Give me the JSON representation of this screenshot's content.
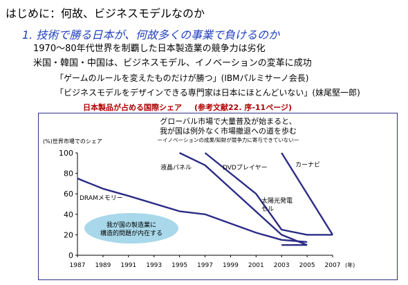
{
  "slide": {
    "heading": "はじめに：何故、ビジネスモデルなのか",
    "subheading": "1. 技術で勝る日本が、何故多くの事業で負けるのか",
    "bullet_1": "1970～80年代世界を制覇した日本製造業の競争力は劣化",
    "bullet_2": "米国・韓国・中国は、ビジネスモデル、イノベーションの変革に成功",
    "quote_1": "「ゲームのルールを変えたものだけが勝つ」(IBMパルミサーノ会長)",
    "quote_2": "「ビジネスモデルをデザインできる専門家は日本にほとんどいない」(妹尾堅一郎)",
    "chart_heading": "日本製品が占める国際シェア",
    "chart_reference": "(参考文献22. 序-11ページ)"
  },
  "colors": {
    "subheading": "#1f3fbf",
    "chart_heading": "#b00000",
    "line": "#2b2b86",
    "bubble": "#a8d8ea"
  },
  "chart_data": {
    "type": "line",
    "title_lines": [
      "グローバル市場で大量普及が始まると、",
      "我が国は例外なく市場撤退への道を歩む"
    ],
    "subtitle": "ーイノベーションの成果/知財が競争力に寄与できていないー",
    "ylabel": "(%)世界市場でのシェア",
    "xlabel_unit": "(年)",
    "ylim": [
      0,
      100
    ],
    "y_ticks": [
      "0",
      "20",
      "40",
      "60",
      "80",
      "100"
    ],
    "x_ticks": [
      "1987",
      "1989",
      "1991",
      "1993",
      "1995",
      "1997",
      "1999",
      "2001",
      "2003",
      "2005",
      "2007"
    ],
    "series": [
      {
        "name": "DRAMメモリー",
        "x": [
          1987,
          1989,
          1991,
          1995,
          1997,
          2001,
          2003,
          2005
        ],
        "y": [
          75,
          65,
          58,
          43,
          40,
          22,
          15,
          13
        ]
      },
      {
        "name": "液晶パネル",
        "x": [
          1995,
          1997,
          2003,
          2005
        ],
        "y": [
          100,
          88,
          20,
          10
        ]
      },
      {
        "name": "DVDプレイヤー",
        "x": [
          1997,
          2001,
          2003,
          2005,
          2007
        ],
        "y": [
          100,
          60,
          25,
          20,
          20
        ]
      },
      {
        "name": "太陽光発電セル",
        "x": [
          2003,
          2005
        ],
        "y": [
          10,
          10
        ]
      },
      {
        "name": "カーナビ",
        "x": [
          2003,
          2007
        ],
        "y": [
          100,
          20
        ]
      }
    ],
    "annotation": "我が国の製造業に\n構造的問題が内在する"
  }
}
